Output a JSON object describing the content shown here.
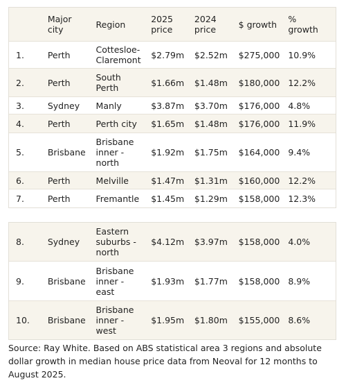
{
  "tables": [
    {
      "headers": [
        "Major city",
        "Region",
        "2025 price",
        "2024 price",
        "$ growth",
        "% growth"
      ],
      "rows": [
        [
          "1.",
          "Perth",
          "Cottesloe-Claremont",
          "$2.79m",
          "$2.52m",
          "$275,000",
          "10.9%"
        ],
        [
          "2.",
          "Perth",
          "South Perth",
          "$1.66m",
          "$1.48m",
          "$180,000",
          "12.2%"
        ],
        [
          "3.",
          "Sydney",
          "Manly",
          "$3.87m",
          "$3.70m",
          "$176,000",
          "4.8%"
        ],
        [
          "4.",
          "Perth",
          "Perth city",
          "$1.65m",
          "$1.48m",
          "$176,000",
          "11.9%"
        ],
        [
          "5.",
          "Brisbane",
          "Brisbane inner - north",
          "$1.92m",
          "$1.75m",
          "$164,000",
          "9.4%"
        ],
        [
          "6.",
          "Perth",
          "Melville",
          "$1.47m",
          "$1.31m",
          "$160,000",
          "12.2%"
        ],
        [
          "7.",
          "Perth",
          "Fremantle",
          "$1.45m",
          "$1.29m",
          "$158,000",
          "12.3%"
        ]
      ]
    },
    {
      "rows": [
        [
          "8.",
          "Sydney",
          "Eastern suburbs - north",
          "$4.12m",
          "$3.97m",
          "$158,000",
          "4.0%"
        ],
        [
          "9.",
          "Brisbane",
          "Brisbane inner - east",
          "$1.93m",
          "$1.77m",
          "$158,000",
          "8.9%"
        ],
        [
          "10.",
          "Brisbane",
          "Brisbane inner - west",
          "$1.95m",
          "$1.80m",
          "$155,000",
          "8.6%"
        ]
      ]
    }
  ],
  "source": "Source: Ray White. Based on ABS statistical area 3 regions and absolute dollar growth in median house price data from Neoval for 12 months to August 2025."
}
